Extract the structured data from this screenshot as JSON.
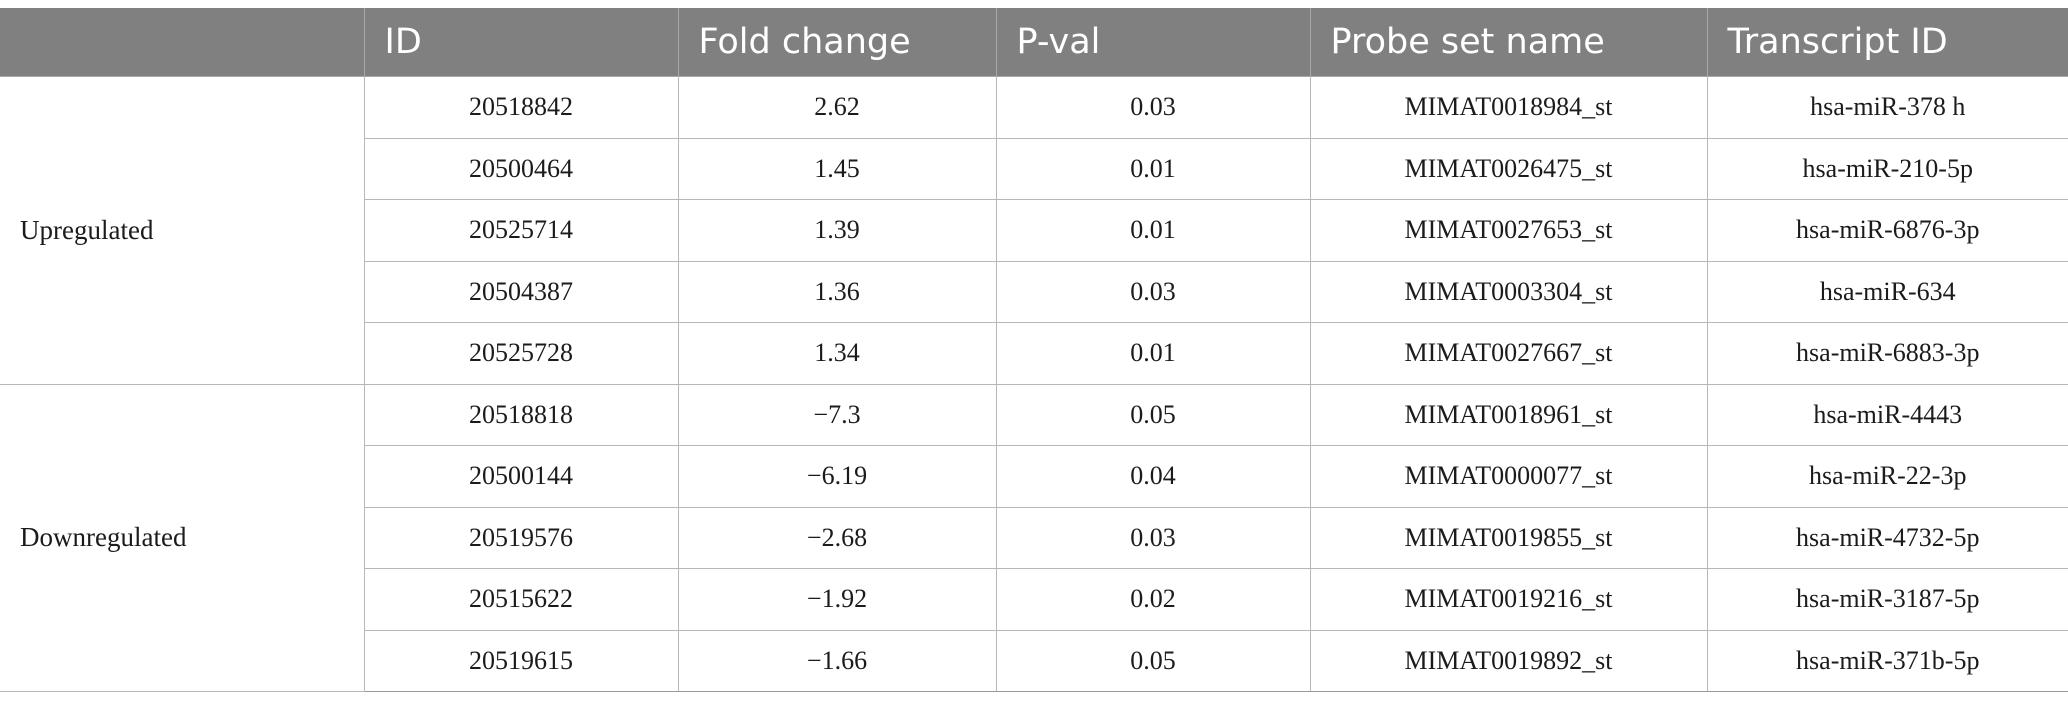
{
  "table": {
    "headers": [
      "",
      "ID",
      "Fold change",
      "P-val",
      "Probe set name",
      "Transcript ID"
    ],
    "groups": [
      {
        "label": "Upregulated",
        "rows": [
          {
            "id": "20518842",
            "fold_change": "2.62",
            "p_val": "0.03",
            "probe_set": "MIMAT0018984_st",
            "transcript": "hsa-miR-378 h"
          },
          {
            "id": "20500464",
            "fold_change": "1.45",
            "p_val": "0.01",
            "probe_set": "MIMAT0026475_st",
            "transcript": "hsa-miR-210-5p"
          },
          {
            "id": "20525714",
            "fold_change": "1.39",
            "p_val": "0.01",
            "probe_set": "MIMAT0027653_st",
            "transcript": "hsa-miR-6876-3p"
          },
          {
            "id": "20504387",
            "fold_change": "1.36",
            "p_val": "0.03",
            "probe_set": "MIMAT0003304_st",
            "transcript": "hsa-miR-634"
          },
          {
            "id": "20525728",
            "fold_change": "1.34",
            "p_val": "0.01",
            "probe_set": "MIMAT0027667_st",
            "transcript": "hsa-miR-6883-3p"
          }
        ]
      },
      {
        "label": "Downregulated",
        "rows": [
          {
            "id": "20518818",
            "fold_change": "−7.3",
            "p_val": "0.05",
            "probe_set": "MIMAT0018961_st",
            "transcript": "hsa-miR-4443"
          },
          {
            "id": "20500144",
            "fold_change": "−6.19",
            "p_val": "0.04",
            "probe_set": "MIMAT0000077_st",
            "transcript": "hsa-miR-22-3p"
          },
          {
            "id": "20519576",
            "fold_change": "−2.68",
            "p_val": "0.03",
            "probe_set": "MIMAT0019855_st",
            "transcript": "hsa-miR-4732-5p"
          },
          {
            "id": "20515622",
            "fold_change": "−1.92",
            "p_val": "0.02",
            "probe_set": "MIMAT0019216_st",
            "transcript": "hsa-miR-3187-5p"
          },
          {
            "id": "20519615",
            "fold_change": "−1.66",
            "p_val": "0.05",
            "probe_set": "MIMAT0019892_st",
            "transcript": "hsa-miR-371b-5p"
          }
        ]
      }
    ]
  },
  "colors": {
    "header_bg": "#7f807f",
    "header_text": "#ffffff",
    "grid_line": "#b7b7b7",
    "body_text": "#1b1b1b"
  }
}
